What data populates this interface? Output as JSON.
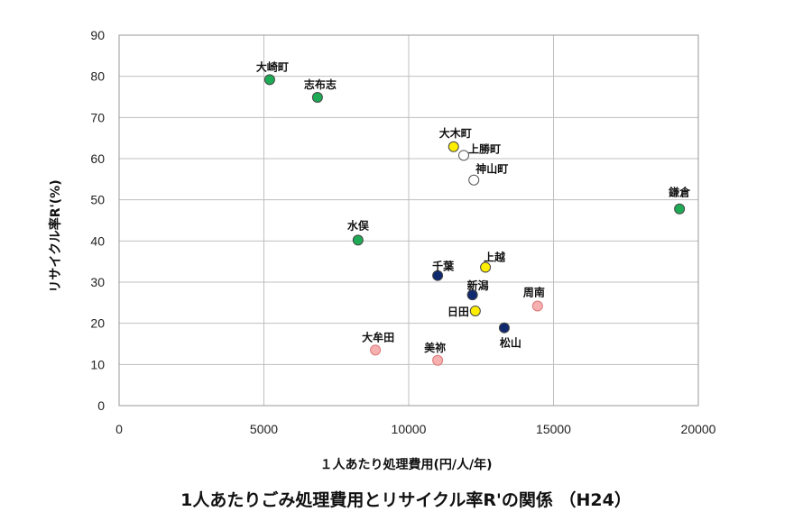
{
  "chart_data": {
    "type": "scatter",
    "title": "1人あたりごみ処理費用とリサイクル率R'の関係 （H24）",
    "xlabel": "１人あたり処理費用(円/人/年)",
    "ylabel": "リサイクル率R'(%)",
    "xlim": [
      0,
      20000
    ],
    "ylim": [
      0,
      90
    ],
    "xticks": [
      "0",
      "5000",
      "10000",
      "15000",
      "20000"
    ],
    "yticks": [
      "0",
      "10",
      "20",
      "30",
      "40",
      "50",
      "60",
      "70",
      "80",
      "90"
    ],
    "grid": true,
    "points": [
      {
        "label": "大崎町",
        "x": 5200,
        "y": 79.2,
        "color": "#1faa55"
      },
      {
        "label": "志布志",
        "x": 6850,
        "y": 74.9,
        "color": "#1faa55"
      },
      {
        "label": "大木町",
        "x": 11550,
        "y": 62.9,
        "color": "#ffee00"
      },
      {
        "label": "上勝町",
        "x": 11900,
        "y": 60.8,
        "color": "#ffffff"
      },
      {
        "label": "神山町",
        "x": 12250,
        "y": 54.8,
        "color": "#ffffff"
      },
      {
        "label": "鎌倉",
        "x": 19350,
        "y": 47.8,
        "color": "#1faa55"
      },
      {
        "label": "水俣",
        "x": 8250,
        "y": 40.2,
        "color": "#1faa55"
      },
      {
        "label": "上越",
        "x": 12650,
        "y": 33.6,
        "color": "#ffee00"
      },
      {
        "label": "千葉",
        "x": 11000,
        "y": 31.6,
        "color": "#0f2a6e"
      },
      {
        "label": "新潟",
        "x": 12200,
        "y": 26.9,
        "color": "#0f2a6e"
      },
      {
        "label": "周南",
        "x": 14450,
        "y": 24.2,
        "color": "#f6b0b0"
      },
      {
        "label": "日田",
        "x": 12300,
        "y": 23.0,
        "color": "#ffee00"
      },
      {
        "label": "松山",
        "x": 13300,
        "y": 18.9,
        "color": "#0f2a6e"
      },
      {
        "label": "大牟田",
        "x": 8850,
        "y": 13.5,
        "color": "#f6b0b0"
      },
      {
        "label": "美祢",
        "x": 11000,
        "y": 11.0,
        "color": "#f6b0b0"
      }
    ]
  }
}
